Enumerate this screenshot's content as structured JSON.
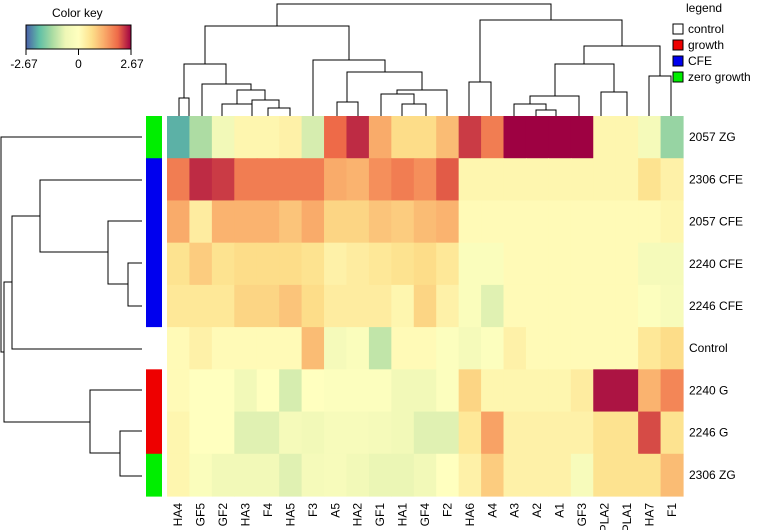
{
  "chart_data": {
    "type": "heatmap",
    "title": "",
    "color_key": {
      "title": "Color key",
      "ticks": [
        "-2.67",
        "0",
        "2.67"
      ],
      "range": [
        -2.67,
        2.67
      ],
      "stops": [
        "#4a5fa8",
        "#5fbfa6",
        "#a9dba2",
        "#eef7b6",
        "#ffffbf",
        "#fde08b",
        "#f9a868",
        "#ee6a48",
        "#9e0142"
      ]
    },
    "legend": {
      "title": "legend",
      "entries": [
        {
          "label": "control",
          "color": "#ffffff"
        },
        {
          "label": "growth",
          "color": "#ee0000"
        },
        {
          "label": "CFE",
          "color": "#0000ee"
        },
        {
          "label": "zero growth",
          "color": "#00ee00"
        }
      ]
    },
    "columns": [
      "HA4",
      "GF5",
      "GF2",
      "HA3",
      "F4",
      "HA5",
      "F3",
      "A5",
      "HA2",
      "GF1",
      "HA1",
      "GF4",
      "F2",
      "HA6",
      "A4",
      "A3",
      "A2",
      "A1",
      "GF3",
      "PLA2",
      "PLA1",
      "HA7",
      "F1"
    ],
    "rows": [
      {
        "label": "2057 ZG",
        "group": "zero growth",
        "values": [
          -2.1,
          -1.3,
          -0.5,
          0.2,
          0.2,
          0.3,
          -0.9,
          2.0,
          2.4,
          1.3,
          0.7,
          0.7,
          1.1,
          2.3,
          1.8,
          2.67,
          2.67,
          2.67,
          2.67,
          0.2,
          0.2,
          -0.4,
          -1.5
        ]
      },
      {
        "label": "2306 CFE",
        "group": "CFE",
        "values": [
          1.8,
          2.4,
          2.3,
          1.8,
          1.8,
          1.8,
          1.8,
          1.3,
          1.2,
          1.6,
          1.8,
          1.6,
          2.1,
          0.2,
          0.2,
          0.2,
          0.2,
          0.2,
          0.2,
          0.2,
          0.2,
          0.6,
          0.3
        ]
      },
      {
        "label": "2057 CFE",
        "group": "CFE",
        "values": [
          1.3,
          0.4,
          1.2,
          1.2,
          1.2,
          1.0,
          1.3,
          0.8,
          0.8,
          1.0,
          0.9,
          1.1,
          1.2,
          0.1,
          0.1,
          0.1,
          0.1,
          0.1,
          0.1,
          0.1,
          0.1,
          0.1,
          0.2
        ]
      },
      {
        "label": "2240 CFE",
        "group": "CFE",
        "values": [
          0.6,
          0.9,
          0.6,
          0.7,
          0.7,
          0.7,
          0.6,
          0.3,
          0.4,
          0.5,
          0.6,
          0.7,
          0.5,
          -0.2,
          -0.2,
          0.1,
          0.1,
          0.1,
          0.1,
          0.1,
          0.1,
          -0.4,
          -0.4
        ]
      },
      {
        "label": "2246 CFE",
        "group": "CFE",
        "values": [
          0.5,
          0.5,
          0.5,
          0.8,
          0.8,
          1.0,
          0.7,
          0.4,
          0.4,
          0.4,
          0.2,
          0.8,
          0.3,
          -0.2,
          -0.8,
          0.1,
          0.1,
          0.1,
          0.1,
          0.1,
          0.1,
          -0.1,
          -0.3
        ]
      },
      {
        "label": "Control",
        "group": "control",
        "values": [
          0.1,
          0.3,
          0.1,
          0.1,
          0.1,
          0.1,
          1.1,
          -0.4,
          -0.2,
          -1.1,
          0.1,
          0.1,
          -0.1,
          -0.4,
          -0.1,
          0.3,
          0.1,
          0.1,
          0.1,
          0.1,
          0.1,
          0.5,
          0.7
        ]
      },
      {
        "label": "2240 G",
        "group": "growth",
        "values": [
          0.1,
          0.0,
          0.0,
          -0.5,
          0.0,
          -0.9,
          0.0,
          -0.1,
          -0.1,
          -0.1,
          -0.5,
          -0.5,
          -0.1,
          0.8,
          0.2,
          0.2,
          0.2,
          0.2,
          0.4,
          2.55,
          2.55,
          1.2,
          1.7
        ]
      },
      {
        "label": "2246 G",
        "group": "growth",
        "values": [
          0.2,
          0.0,
          0.0,
          -0.8,
          -0.8,
          -0.4,
          -0.5,
          -0.3,
          -0.3,
          -0.4,
          -0.5,
          -0.8,
          -0.8,
          0.5,
          1.4,
          0.3,
          0.3,
          0.3,
          0.3,
          0.6,
          0.6,
          2.2,
          0.6
        ]
      },
      {
        "label": "2306 ZG",
        "group": "zero growth",
        "values": [
          0.2,
          -0.2,
          -0.5,
          -0.5,
          -0.5,
          -0.8,
          -0.4,
          -0.3,
          -0.5,
          -0.7,
          -0.7,
          -0.5,
          0.0,
          0.3,
          0.9,
          0.3,
          0.3,
          0.3,
          -0.3,
          0.6,
          0.6,
          0.6,
          1.1
        ]
      }
    ]
  }
}
